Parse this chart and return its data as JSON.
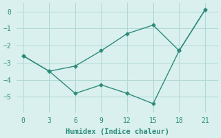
{
  "line1_x": [
    0,
    3,
    6,
    9,
    12,
    15,
    18,
    21
  ],
  "line1_y": [
    -2.6,
    -3.5,
    -3.2,
    -2.3,
    -1.3,
    -0.8,
    -2.3,
    0.1
  ],
  "line2_x": [
    0,
    3,
    6,
    9,
    12,
    15,
    18,
    21
  ],
  "line2_y": [
    -2.6,
    -3.5,
    -4.8,
    -4.3,
    -4.8,
    -5.4,
    -2.3,
    0.1
  ],
  "color": "#2e8b7a",
  "xlabel": "Humidex (Indice chaleur)",
  "xlim": [
    -0.8,
    22.5
  ],
  "ylim": [
    -5.9,
    0.5
  ],
  "xticks": [
    0,
    3,
    6,
    9,
    12,
    15,
    18,
    21
  ],
  "yticks": [
    0,
    -1,
    -2,
    -3,
    -4,
    -5
  ],
  "background_color": "#d9f0ef",
  "grid_color": "#afd8d5",
  "marker": "D",
  "markersize": 2.5,
  "linewidth": 1.0,
  "tick_fontsize": 7,
  "xlabel_fontsize": 7.5
}
